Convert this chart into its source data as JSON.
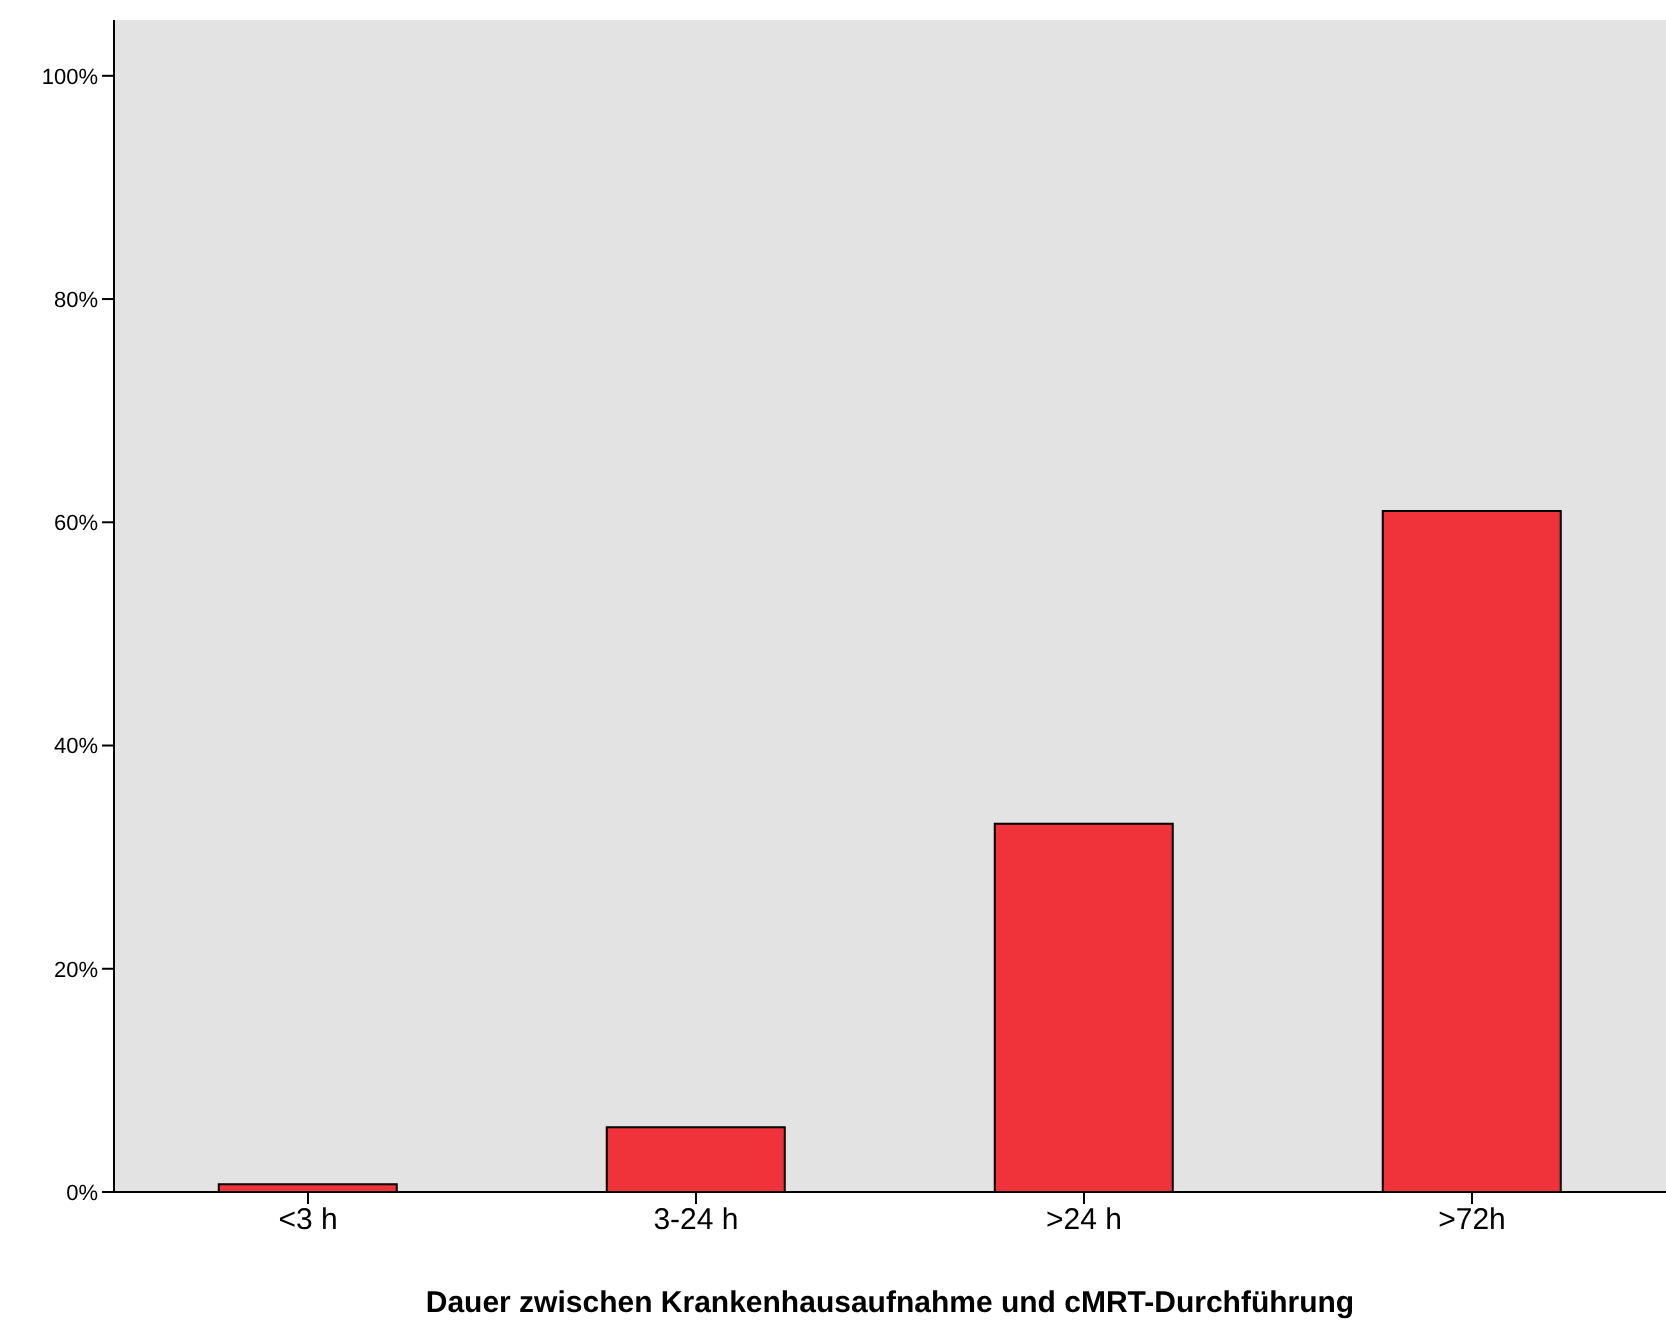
{
  "chart_data": {
    "type": "bar",
    "xlabel": "Dauer zwischen Krankenhausaufnahme und cMRT-Durchführung",
    "categories": [
      "<3 h",
      "3-24 h",
      ">24 h",
      ">72h"
    ],
    "values": [
      0.7,
      5.8,
      33,
      61
    ],
    "color": "#f0323a",
    "ylim": [
      0,
      105
    ],
    "yticks": [
      {
        "value": 0,
        "label": "0%"
      },
      {
        "value": 20,
        "label": "20%"
      },
      {
        "value": 40,
        "label": "40%"
      },
      {
        "value": 60,
        "label": "60%"
      },
      {
        "value": 80,
        "label": "80%"
      },
      {
        "value": 100,
        "label": "100%"
      }
    ],
    "grid": false
  }
}
